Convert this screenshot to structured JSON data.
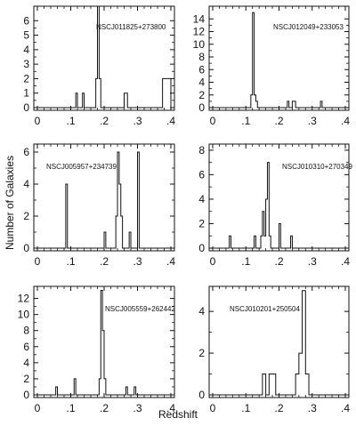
{
  "figure": {
    "xlabel": "Redshift",
    "ylabel": "Number of Galaxies"
  },
  "chart_data": [
    {
      "type": "histogram",
      "name": "NSCJ011825+273800",
      "xlim": [
        0,
        0.4
      ],
      "ylim": [
        0,
        7
      ],
      "x_ticks": [
        0,
        0.1,
        0.2,
        0.3,
        0.4
      ],
      "x_tick_labels": [
        "0",
        ".1",
        ".2",
        ".3",
        ".4"
      ],
      "y_ticks": [
        0,
        1,
        2,
        3,
        4,
        5,
        6
      ],
      "y_tick_labels": [
        "0",
        "1",
        "2",
        "3",
        "4",
        "5",
        "6"
      ],
      "bin_width": 0.005,
      "bins": [
        [
          0.115,
          1
        ],
        [
          0.135,
          1
        ],
        [
          0.175,
          2
        ],
        [
          0.18,
          7
        ],
        [
          0.185,
          2
        ],
        [
          0.26,
          1
        ],
        [
          0.265,
          1
        ],
        [
          0.375,
          2
        ],
        [
          0.38,
          2
        ],
        [
          0.385,
          2
        ],
        [
          0.39,
          2
        ],
        [
          0.395,
          2
        ]
      ]
    },
    {
      "type": "histogram",
      "name": "NSCJ012049+233053",
      "xlim": [
        0,
        0.4
      ],
      "ylim": [
        0,
        16
      ],
      "x_ticks": [
        0,
        0.1,
        0.2,
        0.3,
        0.4
      ],
      "x_tick_labels": [
        "0",
        ".1",
        ".2",
        ".3",
        ".4"
      ],
      "y_ticks": [
        0,
        2,
        4,
        6,
        8,
        10,
        12,
        14
      ],
      "y_tick_labels": [
        "0",
        "2",
        "4",
        "6",
        "8",
        "10",
        "12",
        "14"
      ],
      "bin_width": 0.005,
      "bins": [
        [
          0.115,
          2
        ],
        [
          0.12,
          15
        ],
        [
          0.125,
          2
        ],
        [
          0.13,
          1
        ],
        [
          0.225,
          1
        ],
        [
          0.24,
          1
        ],
        [
          0.245,
          1
        ],
        [
          0.325,
          1
        ]
      ]
    },
    {
      "type": "histogram",
      "name": "NSCJ005957+234739",
      "xlim": [
        0,
        0.4
      ],
      "ylim": [
        0,
        6.5
      ],
      "x_ticks": [
        0,
        0.1,
        0.2,
        0.3,
        0.4
      ],
      "x_tick_labels": [
        "0",
        ".1",
        ".2",
        ".3",
        ".4"
      ],
      "y_ticks": [
        0,
        2,
        4,
        6
      ],
      "y_tick_labels": [
        "0",
        "2",
        "4",
        "6"
      ],
      "bin_width": 0.005,
      "bins": [
        [
          0.085,
          4
        ],
        [
          0.2,
          1
        ],
        [
          0.235,
          2
        ],
        [
          0.24,
          6
        ],
        [
          0.245,
          4
        ],
        [
          0.25,
          2
        ],
        [
          0.275,
          1
        ],
        [
          0.3,
          6
        ]
      ]
    },
    {
      "type": "histogram",
      "name": "NSCJ010310+270349",
      "xlim": [
        0,
        0.4
      ],
      "ylim": [
        0,
        8.5
      ],
      "x_ticks": [
        0,
        0.1,
        0.2,
        0.3,
        0.4
      ],
      "x_tick_labels": [
        "0",
        ".1",
        ".2",
        ".3",
        ".4"
      ],
      "y_ticks": [
        0,
        2,
        4,
        6,
        8
      ],
      "y_tick_labels": [
        "0",
        "2",
        "4",
        "6",
        "8"
      ],
      "bin_width": 0.005,
      "bins": [
        [
          0.05,
          1
        ],
        [
          0.125,
          1
        ],
        [
          0.145,
          1
        ],
        [
          0.15,
          3
        ],
        [
          0.155,
          1
        ],
        [
          0.16,
          4
        ],
        [
          0.165,
          7
        ],
        [
          0.17,
          1
        ],
        [
          0.2,
          2
        ],
        [
          0.235,
          1
        ]
      ]
    },
    {
      "type": "histogram",
      "name": "NSCJ005559+262442",
      "xlim": [
        0,
        0.4
      ],
      "ylim": [
        0,
        13.5
      ],
      "x_ticks": [
        0,
        0.1,
        0.2,
        0.3,
        0.4
      ],
      "x_tick_labels": [
        "0",
        ".1",
        ".2",
        ".3",
        ".4"
      ],
      "y_ticks": [
        0,
        2,
        4,
        6,
        8,
        10,
        12
      ],
      "y_tick_labels": [
        "0",
        "2",
        "4",
        "6",
        "8",
        "10",
        "12"
      ],
      "bin_width": 0.005,
      "bins": [
        [
          0.055,
          1
        ],
        [
          0.11,
          2
        ],
        [
          0.185,
          2
        ],
        [
          0.19,
          13
        ],
        [
          0.195,
          8
        ],
        [
          0.2,
          2
        ],
        [
          0.265,
          1
        ],
        [
          0.29,
          1
        ]
      ]
    },
    {
      "type": "histogram",
      "name": "NSCJ010201+250504",
      "xlim": [
        0,
        0.4
      ],
      "ylim": [
        0,
        5.2
      ],
      "x_ticks": [
        0,
        0.1,
        0.2,
        0.3,
        0.4
      ],
      "x_tick_labels": [
        "0",
        ".1",
        ".2",
        ".3",
        ".4"
      ],
      "y_ticks": [
        0,
        2,
        4
      ],
      "y_tick_labels": [
        "0",
        "2",
        "4"
      ],
      "bin_width": 0.01,
      "bins": [
        [
          0.15,
          1
        ],
        [
          0.17,
          1
        ],
        [
          0.18,
          1
        ],
        [
          0.25,
          1
        ],
        [
          0.26,
          2
        ],
        [
          0.265,
          4
        ],
        [
          0.27,
          5
        ],
        [
          0.28,
          1
        ]
      ]
    }
  ]
}
